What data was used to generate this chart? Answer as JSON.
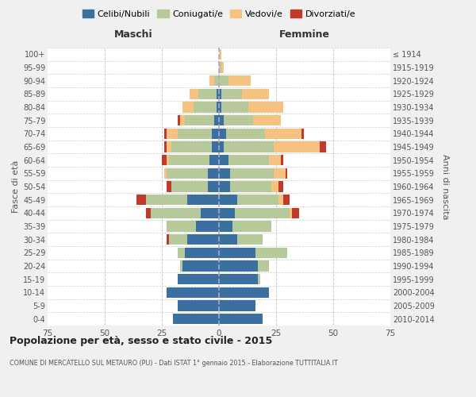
{
  "age_groups": [
    "0-4",
    "5-9",
    "10-14",
    "15-19",
    "20-24",
    "25-29",
    "30-34",
    "35-39",
    "40-44",
    "45-49",
    "50-54",
    "55-59",
    "60-64",
    "65-69",
    "70-74",
    "75-79",
    "80-84",
    "85-89",
    "90-94",
    "95-99",
    "100+"
  ],
  "birth_years": [
    "2010-2014",
    "2005-2009",
    "2000-2004",
    "1995-1999",
    "1990-1994",
    "1985-1989",
    "1980-1984",
    "1975-1979",
    "1970-1974",
    "1965-1969",
    "1960-1964",
    "1955-1959",
    "1950-1954",
    "1945-1949",
    "1940-1944",
    "1935-1939",
    "1930-1934",
    "1925-1929",
    "1920-1924",
    "1915-1919",
    "≤ 1914"
  ],
  "males": {
    "celibe": [
      20,
      18,
      23,
      18,
      16,
      15,
      14,
      10,
      8,
      14,
      5,
      5,
      4,
      3,
      3,
      2,
      1,
      1,
      0,
      0,
      0
    ],
    "coniugato": [
      0,
      0,
      0,
      0,
      1,
      3,
      8,
      13,
      22,
      18,
      16,
      18,
      18,
      18,
      15,
      13,
      10,
      8,
      2,
      0,
      0
    ],
    "vedovo": [
      0,
      0,
      0,
      0,
      0,
      0,
      0,
      0,
      0,
      0,
      0,
      1,
      1,
      2,
      5,
      2,
      5,
      4,
      2,
      0,
      0
    ],
    "divorziato": [
      0,
      0,
      0,
      0,
      0,
      0,
      1,
      0,
      2,
      4,
      2,
      0,
      2,
      1,
      1,
      1,
      0,
      0,
      0,
      0,
      0
    ]
  },
  "females": {
    "nubile": [
      19,
      16,
      22,
      17,
      17,
      16,
      8,
      6,
      7,
      8,
      5,
      5,
      4,
      2,
      3,
      2,
      1,
      1,
      0,
      0,
      0
    ],
    "coniugata": [
      0,
      0,
      0,
      1,
      5,
      14,
      11,
      17,
      24,
      18,
      18,
      19,
      18,
      22,
      17,
      13,
      12,
      9,
      4,
      1,
      0
    ],
    "vedova": [
      0,
      0,
      0,
      0,
      0,
      0,
      0,
      0,
      1,
      2,
      3,
      5,
      5,
      20,
      16,
      12,
      15,
      12,
      10,
      1,
      1
    ],
    "divorziata": [
      0,
      0,
      0,
      0,
      0,
      0,
      0,
      0,
      3,
      3,
      2,
      1,
      1,
      3,
      1,
      0,
      0,
      0,
      0,
      0,
      0
    ]
  },
  "colors": {
    "celibe": "#3b6fa0",
    "coniugato": "#b5c99a",
    "vedovo": "#f5c27f",
    "divorziato": "#c0392b"
  },
  "legend_labels": [
    "Celibi/Nubili",
    "Coniugati/e",
    "Vedovi/e",
    "Divorziati/e"
  ],
  "title_main": "Popolazione per età, sesso e stato civile - 2015",
  "title_sub": "COMUNE DI MERCATELLO SUL METAURO (PU) - Dati ISTAT 1° gennaio 2015 - Elaborazione TUTTITALIA.IT",
  "xlabel_left": "Maschi",
  "xlabel_right": "Femmine",
  "ylabel_left": "Fasce di età",
  "ylabel_right": "Anni di nascita",
  "xlim": 75,
  "bg_color": "#f0f0f0",
  "plot_bg": "#ffffff",
  "grid_color": "#cccccc"
}
